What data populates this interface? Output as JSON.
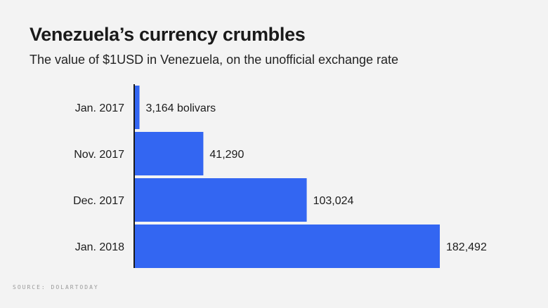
{
  "title": "Venezuela’s currency crumbles",
  "subtitle": "The value of $1USD in Venezuela, on the unofficial exchange rate",
  "source": "SOURCE: DOLARTODAY",
  "colors": {
    "bar": "#3366f2",
    "background": "#f3f3f3",
    "axis": "#1a1a1a",
    "text": "#1c1c1c"
  },
  "chart_data": {
    "type": "bar",
    "orientation": "horizontal",
    "categories": [
      "Jan. 2017",
      "Nov. 2017",
      "Dec. 2017",
      "Jan. 2018"
    ],
    "values": [
      3164,
      41290,
      103024,
      182492
    ],
    "value_labels": [
      "3,164 bolivars",
      "41,290",
      "103,024",
      "182,492"
    ],
    "title": "Venezuela’s currency crumbles",
    "subtitle": "The value of $1USD in Venezuela, on the unofficial exchange rate",
    "xlabel": "",
    "ylabel": "",
    "xlim": [
      0,
      200000
    ],
    "grid": false,
    "legend": "none"
  }
}
